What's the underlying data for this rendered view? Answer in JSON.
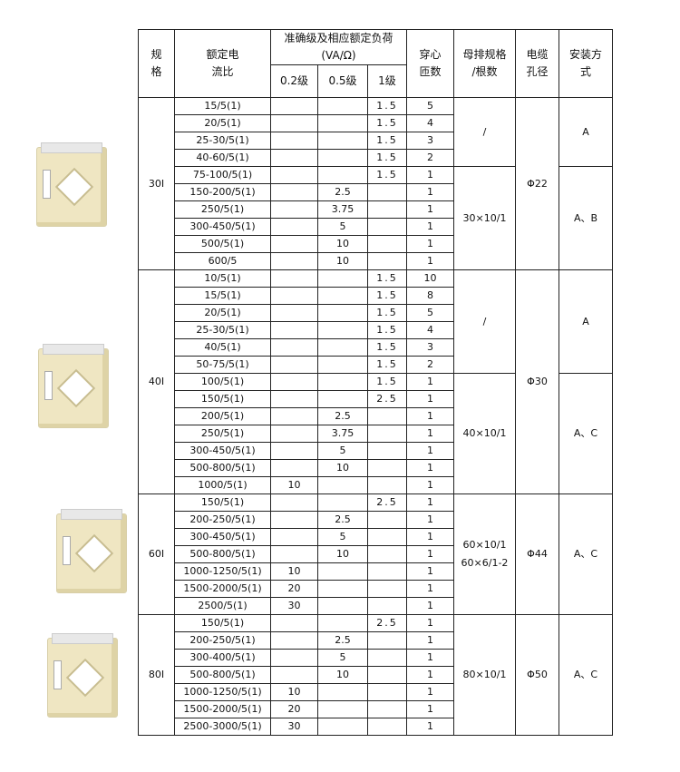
{
  "header": {
    "spec": "规\n格",
    "ratio": "额定电\n流比",
    "accuracy": "准确级及相应额定负荷\n(VA/Ω)",
    "class02": "0.2级",
    "class05": "0.5级",
    "class1": "1级",
    "turns": "穿心\n匝数",
    "busbar": "母排规格\n/根数",
    "cable": "电缆\n孔径",
    "install": "安装方\n式"
  },
  "groups": [
    {
      "spec": "30I",
      "cable": "Φ22",
      "busbar": [
        {
          "text": "/",
          "rows": 4
        },
        {
          "text": "30×10/1",
          "rows": 6
        }
      ],
      "install": [
        {
          "text": "A",
          "rows": 4
        },
        {
          "text": "A、B",
          "rows": 6
        }
      ],
      "rows": [
        [
          "15/5(1)",
          "",
          "",
          "1.5",
          "5"
        ],
        [
          "20/5(1)",
          "",
          "",
          "1.5",
          "4"
        ],
        [
          "25-30/5(1)",
          "",
          "",
          "1.5",
          "3"
        ],
        [
          "40-60/5(1)",
          "",
          "",
          "1.5",
          "2"
        ],
        [
          "75-100/5(1)",
          "",
          "",
          "1.5",
          "1"
        ],
        [
          "150-200/5(1)",
          "",
          "2.5",
          "",
          "1"
        ],
        [
          "250/5(1)",
          "",
          "3.75",
          "",
          "1"
        ],
        [
          "300-450/5(1)",
          "",
          "5",
          "",
          "1"
        ],
        [
          "500/5(1)",
          "",
          "10",
          "",
          "1"
        ],
        [
          "600/5",
          "",
          "10",
          "",
          "1"
        ]
      ]
    },
    {
      "spec": "40I",
      "cable": "Φ30",
      "busbar": [
        {
          "text": "/",
          "rows": 6
        },
        {
          "text": "40×10/1",
          "rows": 7
        }
      ],
      "install": [
        {
          "text": "A",
          "rows": 6
        },
        {
          "text": "A、C",
          "rows": 7
        }
      ],
      "rows": [
        [
          "10/5(1)",
          "",
          "",
          "1.5",
          "10"
        ],
        [
          "15/5(1)",
          "",
          "",
          "1.5",
          "8"
        ],
        [
          "20/5(1)",
          "",
          "",
          "1.5",
          "5"
        ],
        [
          "25-30/5(1)",
          "",
          "",
          "1.5",
          "4"
        ],
        [
          "40/5(1)",
          "",
          "",
          "1.5",
          "3"
        ],
        [
          "50-75/5(1)",
          "",
          "",
          "1.5",
          "2"
        ],
        [
          "100/5(1)",
          "",
          "",
          "1.5",
          "1"
        ],
        [
          "150/5(1)",
          "",
          "",
          "2.5",
          "1"
        ],
        [
          "200/5(1)",
          "",
          "2.5",
          "",
          "1"
        ],
        [
          "250/5(1)",
          "",
          "3.75",
          "",
          "1"
        ],
        [
          "300-450/5(1)",
          "",
          "5",
          "",
          "1"
        ],
        [
          "500-800/5(1)",
          "",
          "10",
          "",
          "1"
        ],
        [
          "1000/5(1)",
          "10",
          "",
          "",
          "1"
        ]
      ]
    },
    {
      "spec": "60I",
      "cable": "Φ44",
      "busbar": [
        {
          "text": "60×10/1\n60×6/1-2",
          "rows": 7
        }
      ],
      "install": [
        {
          "text": "A、C",
          "rows": 7
        }
      ],
      "rows": [
        [
          "150/5(1)",
          "",
          "",
          "2.5",
          "1"
        ],
        [
          "200-250/5(1)",
          "",
          "2.5",
          "",
          "1"
        ],
        [
          "300-450/5(1)",
          "",
          "5",
          "",
          "1"
        ],
        [
          "500-800/5(1)",
          "",
          "10",
          "",
          "1"
        ],
        [
          "1000-1250/5(1)",
          "10",
          "",
          "",
          "1"
        ],
        [
          "1500-2000/5(1)",
          "20",
          "",
          "",
          "1"
        ],
        [
          "2500/5(1)",
          "30",
          "",
          "",
          "1"
        ]
      ]
    },
    {
      "spec": "80I",
      "cable": "Φ50",
      "busbar": [
        {
          "text": "80×10/1",
          "rows": 7
        }
      ],
      "install": [
        {
          "text": "A、C",
          "rows": 7
        }
      ],
      "rows": [
        [
          "150/5(1)",
          "",
          "",
          "2.5",
          "1"
        ],
        [
          "200-250/5(1)",
          "",
          "2.5",
          "",
          "1"
        ],
        [
          "300-400/5(1)",
          "",
          "5",
          "",
          "1"
        ],
        [
          "500-800/5(1)",
          "",
          "10",
          "",
          "1"
        ],
        [
          "1000-1250/5(1)",
          "10",
          "",
          "",
          "1"
        ],
        [
          "1500-2000/5(1)",
          "20",
          "",
          "",
          "1"
        ],
        [
          "2500-3000/5(1)",
          "30",
          "",
          "",
          "1"
        ]
      ]
    }
  ]
}
